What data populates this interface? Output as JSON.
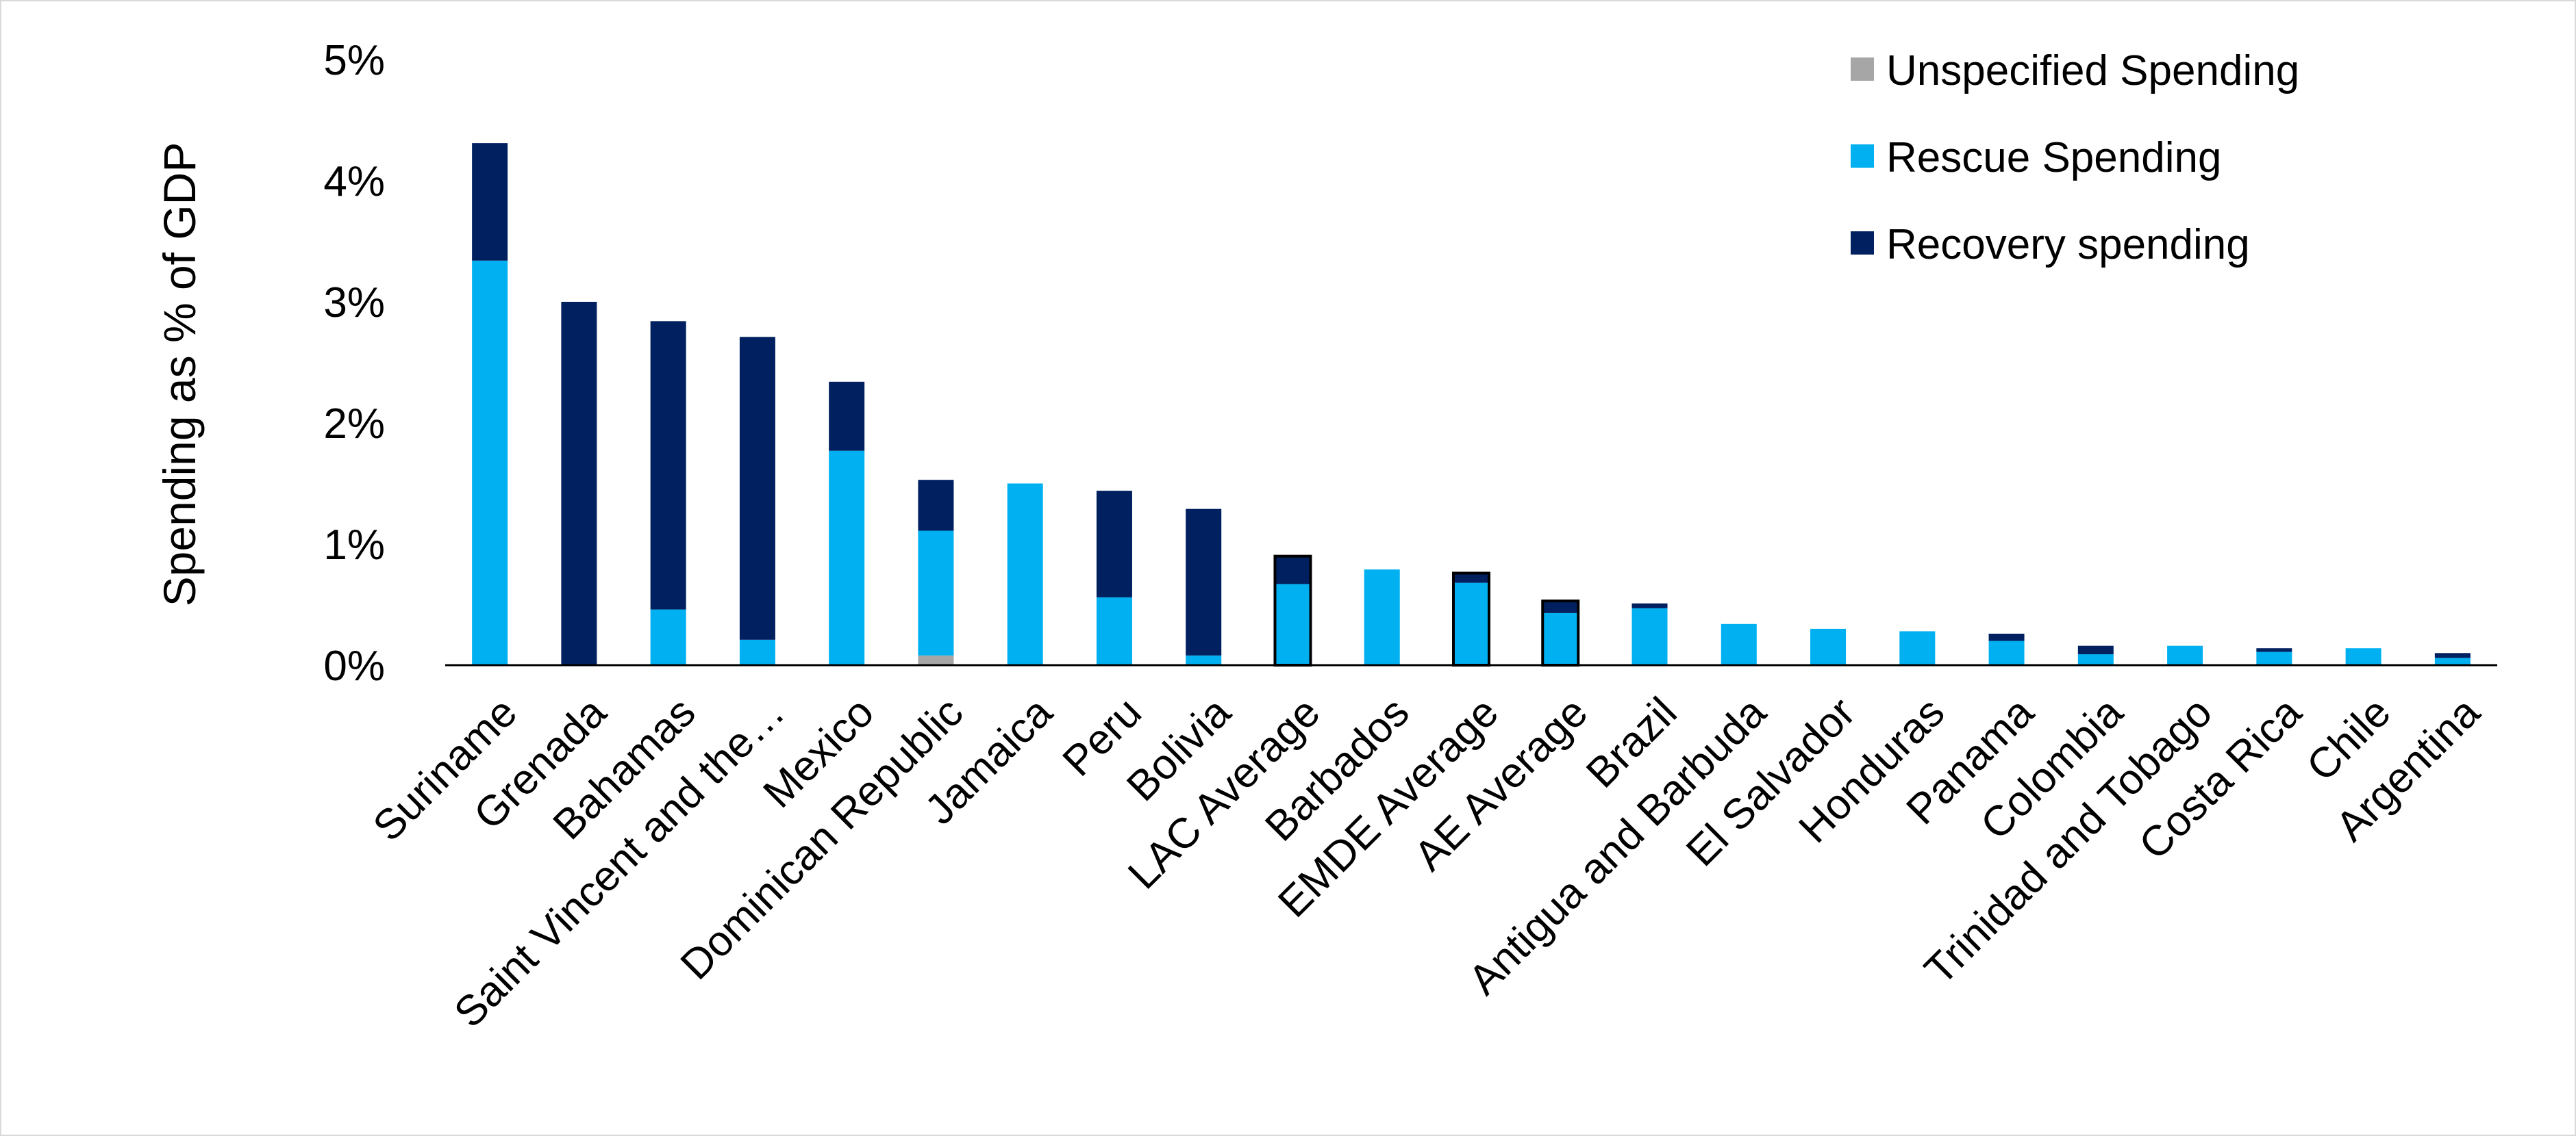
{
  "chart_data": {
    "type": "bar",
    "stacked": true,
    "title": "",
    "xlabel": "",
    "ylabel": "Spending as % of GDP",
    "ylim": [
      0,
      5
    ],
    "y_unit": "%",
    "y_ticks": [
      "0%",
      "1%",
      "2%",
      "3%",
      "4%",
      "5%"
    ],
    "grid": false,
    "legend_position": "top-right",
    "categories": [
      "Suriname",
      "Grenada",
      "Bahamas",
      "Saint Vincent and the…",
      "Mexico",
      "Dominican Republic",
      "Jamaica",
      "Peru",
      "Bolivia",
      "LAC Average",
      "Barbados",
      "EMDE Average",
      "AE Average",
      "Brazil",
      "Antigua and Barbuda",
      "El Salvador",
      "Honduras",
      "Panama",
      "Colombia",
      "Trinidad and Tobago",
      "Costa Rica",
      "Chile",
      "Argentina"
    ],
    "outlined_categories": [
      "LAC Average",
      "EMDE Average",
      "AE Average"
    ],
    "series": [
      {
        "name": "Unspecified Spending",
        "color": "#a6a6a6",
        "values": [
          0,
          0,
          0,
          0,
          0,
          0.08,
          0,
          0,
          0,
          0,
          0,
          0,
          0,
          0,
          0,
          0,
          0,
          0,
          0,
          0,
          0,
          0,
          0
        ]
      },
      {
        "name": "Rescue Spending",
        "color": "#00b0f0",
        "values": [
          3.34,
          0,
          0.46,
          0.21,
          1.77,
          1.03,
          1.5,
          0.56,
          0.08,
          0.67,
          0.79,
          0.68,
          0.43,
          0.47,
          0.34,
          0.3,
          0.28,
          0.2,
          0.09,
          0.16,
          0.11,
          0.14,
          0.06
        ]
      },
      {
        "name": "Recovery spending",
        "color": "#002060",
        "values": [
          0.97,
          3.0,
          2.38,
          2.5,
          0.57,
          0.42,
          0,
          0.88,
          1.21,
          0.23,
          0,
          0.08,
          0.1,
          0.04,
          0,
          0,
          0,
          0.06,
          0.07,
          0,
          0.03,
          0,
          0.04
        ]
      }
    ],
    "legend_order": [
      "Unspecified Spending",
      "Rescue Spending",
      "Recovery spending"
    ]
  }
}
